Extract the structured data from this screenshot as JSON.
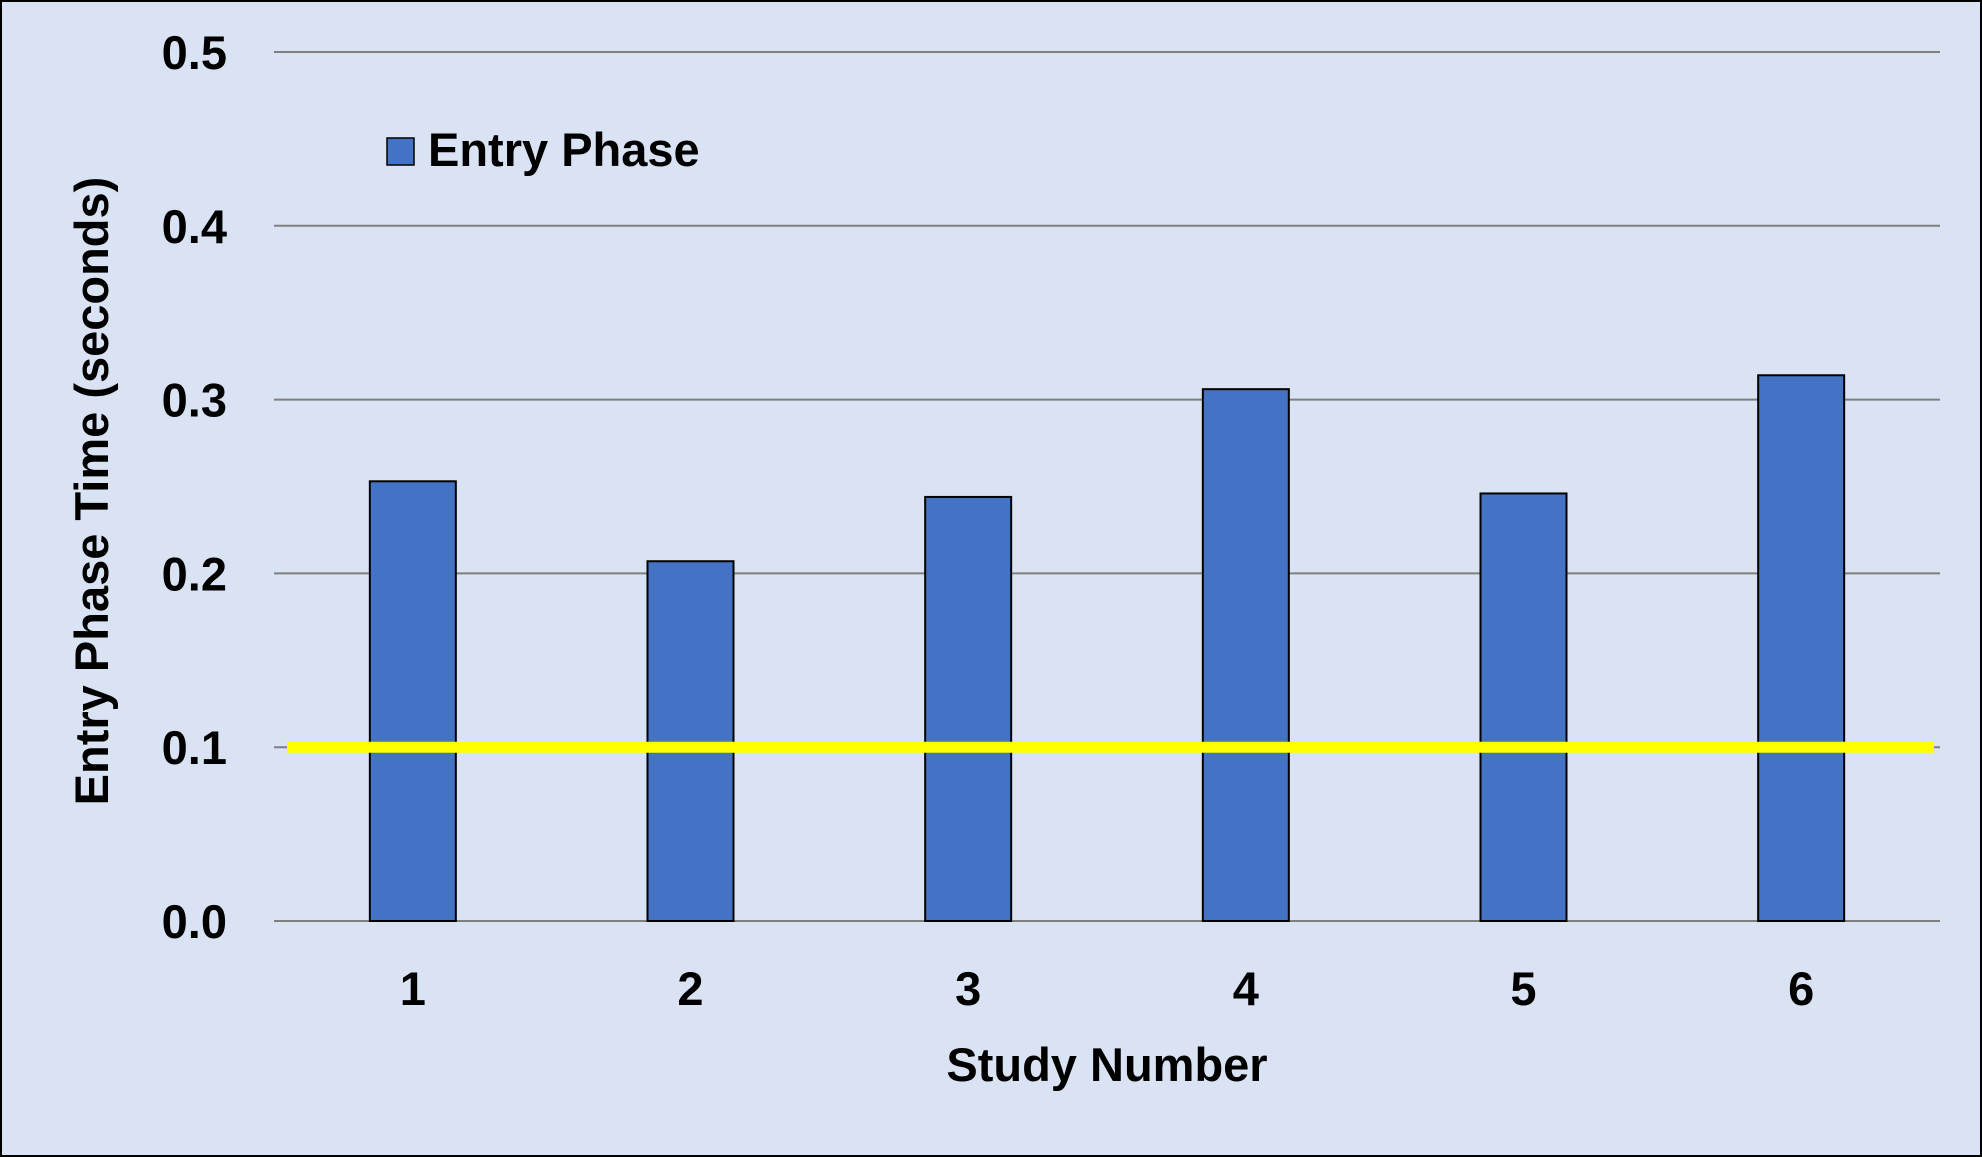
{
  "colors": {
    "background": "#dae3f3",
    "bar_fill": "#4472c4",
    "bar_stroke": "#000000",
    "gridline": "#7f7f7f",
    "reference_line": "#ffff00",
    "text": "#000000"
  },
  "chart_data": {
    "type": "bar",
    "categories": [
      "1",
      "2",
      "3",
      "4",
      "5",
      "6"
    ],
    "series": [
      {
        "name": "Entry Phase",
        "values": [
          0.253,
          0.207,
          0.244,
          0.306,
          0.246,
          0.314
        ]
      }
    ],
    "xlabel": "Study Number",
    "ylabel": "Entry Phase Time (seconds)",
    "ylim": [
      0,
      0.5
    ],
    "yticks": [
      "0.0",
      "0.1",
      "0.2",
      "0.3",
      "0.4",
      "0.5"
    ],
    "grid": true,
    "legend_position": "top-left",
    "reference_line": {
      "y": 0.1
    }
  }
}
